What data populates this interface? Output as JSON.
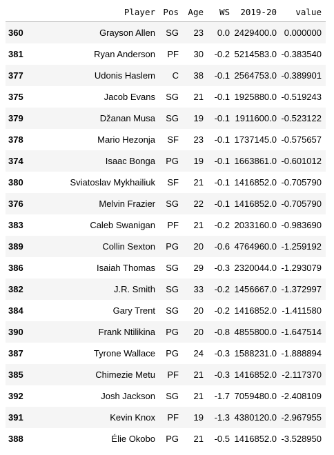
{
  "table": {
    "columns": [
      "",
      "Player",
      "Pos",
      "Age",
      "WS",
      "2019-20",
      "value"
    ],
    "rows": [
      {
        "index": "360",
        "player": "Grayson Allen",
        "pos": "SG",
        "age": "23",
        "ws": "0.0",
        "salary": "2429400.0",
        "value": "0.000000"
      },
      {
        "index": "381",
        "player": "Ryan Anderson",
        "pos": "PF",
        "age": "30",
        "ws": "-0.2",
        "salary": "5214583.0",
        "value": "-0.383540"
      },
      {
        "index": "377",
        "player": "Udonis Haslem",
        "pos": "C",
        "age": "38",
        "ws": "-0.1",
        "salary": "2564753.0",
        "value": "-0.389901"
      },
      {
        "index": "375",
        "player": "Jacob Evans",
        "pos": "SG",
        "age": "21",
        "ws": "-0.1",
        "salary": "1925880.0",
        "value": "-0.519243"
      },
      {
        "index": "379",
        "player": "Džanan Musa",
        "pos": "SG",
        "age": "19",
        "ws": "-0.1",
        "salary": "1911600.0",
        "value": "-0.523122"
      },
      {
        "index": "378",
        "player": "Mario Hezonja",
        "pos": "SF",
        "age": "23",
        "ws": "-0.1",
        "salary": "1737145.0",
        "value": "-0.575657"
      },
      {
        "index": "374",
        "player": "Isaac Bonga",
        "pos": "PG",
        "age": "19",
        "ws": "-0.1",
        "salary": "1663861.0",
        "value": "-0.601012"
      },
      {
        "index": "380",
        "player": "Sviatoslav Mykhailiuk",
        "pos": "SF",
        "age": "21",
        "ws": "-0.1",
        "salary": "1416852.0",
        "value": "-0.705790"
      },
      {
        "index": "376",
        "player": "Melvin Frazier",
        "pos": "SG",
        "age": "22",
        "ws": "-0.1",
        "salary": "1416852.0",
        "value": "-0.705790"
      },
      {
        "index": "383",
        "player": "Caleb Swanigan",
        "pos": "PF",
        "age": "21",
        "ws": "-0.2",
        "salary": "2033160.0",
        "value": "-0.983690"
      },
      {
        "index": "389",
        "player": "Collin Sexton",
        "pos": "PG",
        "age": "20",
        "ws": "-0.6",
        "salary": "4764960.0",
        "value": "-1.259192"
      },
      {
        "index": "386",
        "player": "Isaiah Thomas",
        "pos": "SG",
        "age": "29",
        "ws": "-0.3",
        "salary": "2320044.0",
        "value": "-1.293079"
      },
      {
        "index": "382",
        "player": "J.R. Smith",
        "pos": "SG",
        "age": "33",
        "ws": "-0.2",
        "salary": "1456667.0",
        "value": "-1.372997"
      },
      {
        "index": "384",
        "player": "Gary Trent",
        "pos": "SG",
        "age": "20",
        "ws": "-0.2",
        "salary": "1416852.0",
        "value": "-1.411580"
      },
      {
        "index": "390",
        "player": "Frank Ntilikina",
        "pos": "PG",
        "age": "20",
        "ws": "-0.8",
        "salary": "4855800.0",
        "value": "-1.647514"
      },
      {
        "index": "387",
        "player": "Tyrone Wallace",
        "pos": "PG",
        "age": "24",
        "ws": "-0.3",
        "salary": "1588231.0",
        "value": "-1.888894"
      },
      {
        "index": "385",
        "player": "Chimezie Metu",
        "pos": "PF",
        "age": "21",
        "ws": "-0.3",
        "salary": "1416852.0",
        "value": "-2.117370"
      },
      {
        "index": "392",
        "player": "Josh Jackson",
        "pos": "SG",
        "age": "21",
        "ws": "-1.7",
        "salary": "7059480.0",
        "value": "-2.408109"
      },
      {
        "index": "391",
        "player": "Kevin Knox",
        "pos": "PF",
        "age": "19",
        "ws": "-1.3",
        "salary": "4380120.0",
        "value": "-2.967955"
      },
      {
        "index": "388",
        "player": "Élie Okobo",
        "pos": "PG",
        "age": "21",
        "ws": "-0.5",
        "salary": "1416852.0",
        "value": "-3.528950"
      }
    ]
  }
}
